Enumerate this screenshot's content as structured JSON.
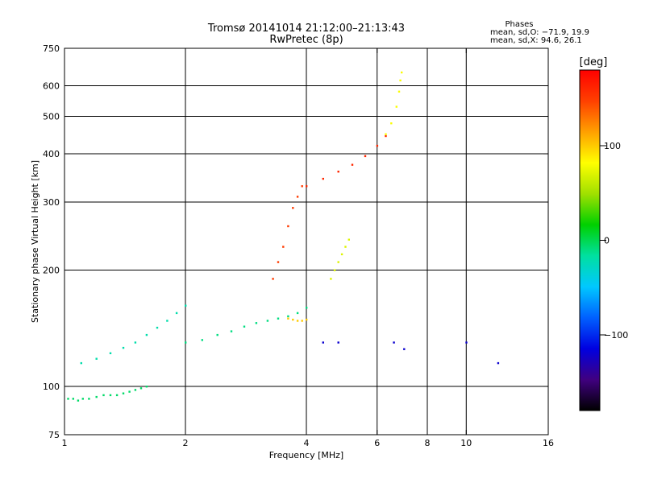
{
  "chart_data": {
    "type": "scatter",
    "title": "Tromsø 20141014 21:12:00–21:13:43",
    "subtitle": "RwPretec (8p)",
    "xlabel": "Frequency [MHz]",
    "ylabel": "Stationary phase Virtual Height [km]",
    "x_scale": "log",
    "y_scale": "log",
    "xlim": [
      1,
      16
    ],
    "ylim": [
      75,
      750
    ],
    "x_ticks": [
      1,
      2,
      4,
      6,
      8,
      10,
      16
    ],
    "x_tick_labels": [
      "1",
      "2",
      "4",
      "6",
      "8",
      "10",
      "16"
    ],
    "y_ticks": [
      75,
      100,
      200,
      300,
      400,
      500,
      600,
      750
    ],
    "y_tick_labels": [
      "75",
      "100",
      "200",
      "300",
      "400",
      "500",
      "600",
      "750"
    ],
    "grid_x": [
      2,
      4,
      6,
      8,
      10
    ],
    "grid_y": [
      100,
      200,
      300,
      400,
      500,
      600
    ],
    "grid": true,
    "phases_box": {
      "title": "Phases",
      "line1": "mean, sd,O: −71.9, 19.9",
      "line2": "mean, sd,X:  94.6, 26.1"
    },
    "colorbar": {
      "label": "[deg]",
      "range": [
        -180,
        180
      ],
      "ticks": [
        -100,
        0,
        100
      ],
      "tick_labels": [
        "−100",
        "0",
        "100"
      ],
      "colors": [
        "#000000",
        "#400080",
        "#0000e0",
        "#0060ff",
        "#00c8ff",
        "#00e0a0",
        "#00d000",
        "#a0e000",
        "#ffff00",
        "#ffa000",
        "#ff4000",
        "#ff0000"
      ]
    },
    "series": [
      {
        "kind": "scatter",
        "points": [
          [
            1.02,
            93
          ],
          [
            1.05,
            93
          ],
          [
            1.08,
            92
          ],
          [
            1.11,
            93
          ],
          [
            1.15,
            93
          ],
          [
            1.2,
            94
          ],
          [
            1.25,
            95
          ],
          [
            1.3,
            95
          ],
          [
            1.35,
            95
          ],
          [
            1.4,
            96
          ],
          [
            1.45,
            97
          ],
          [
            1.5,
            98
          ],
          [
            1.55,
            99
          ],
          [
            1.6,
            100
          ]
        ],
        "phase": -5
      },
      {
        "kind": "scatter",
        "points": [
          [
            1.1,
            115
          ],
          [
            1.2,
            118
          ],
          [
            1.3,
            122
          ],
          [
            1.4,
            126
          ],
          [
            1.5,
            130
          ],
          [
            1.6,
            136
          ],
          [
            1.7,
            142
          ],
          [
            1.8,
            148
          ],
          [
            1.9,
            155
          ],
          [
            2.0,
            162
          ]
        ],
        "phase": -20
      },
      {
        "kind": "scatter",
        "points": [
          [
            2.0,
            130
          ],
          [
            2.2,
            132
          ],
          [
            2.4,
            136
          ],
          [
            2.6,
            139
          ],
          [
            2.8,
            143
          ],
          [
            3.0,
            146
          ],
          [
            3.2,
            148
          ],
          [
            3.4,
            150
          ],
          [
            3.6,
            152
          ],
          [
            3.8,
            155
          ],
          [
            4.0,
            160
          ]
        ],
        "phase": -10
      },
      {
        "kind": "scatter",
        "points": [
          [
            4.0,
            330
          ],
          [
            4.4,
            345
          ],
          [
            4.8,
            360
          ],
          [
            5.2,
            375
          ],
          [
            5.6,
            395
          ],
          [
            6.0,
            420
          ],
          [
            6.3,
            445
          ]
        ],
        "phase": 160
      },
      {
        "kind": "scatter",
        "points": [
          [
            6.3,
            450
          ],
          [
            6.5,
            480
          ],
          [
            6.7,
            530
          ],
          [
            6.8,
            580
          ],
          [
            6.85,
            620
          ],
          [
            6.9,
            650
          ]
        ],
        "phase": 80
      },
      {
        "kind": "scatter",
        "points": [
          [
            3.3,
            190
          ],
          [
            3.4,
            210
          ],
          [
            3.5,
            230
          ],
          [
            3.6,
            260
          ],
          [
            3.7,
            290
          ],
          [
            3.8,
            310
          ],
          [
            3.9,
            330
          ]
        ],
        "phase": 150
      },
      {
        "kind": "scatter",
        "points": [
          [
            3.6,
            150
          ],
          [
            3.7,
            149
          ],
          [
            3.8,
            148
          ],
          [
            3.9,
            148
          ],
          [
            4.0,
            149
          ]
        ],
        "phase": 100
      },
      {
        "kind": "scatter",
        "points": [
          [
            4.6,
            190
          ],
          [
            4.7,
            200
          ],
          [
            4.8,
            210
          ],
          [
            4.9,
            220
          ],
          [
            5.0,
            230
          ],
          [
            5.1,
            240
          ]
        ],
        "phase": 70
      },
      {
        "kind": "scatter",
        "points": [
          [
            4.4,
            130
          ],
          [
            4.8,
            130
          ],
          [
            6.6,
            130
          ],
          [
            7.0,
            125
          ],
          [
            10,
            130
          ],
          [
            12,
            115
          ]
        ],
        "phase": -120
      }
    ]
  }
}
